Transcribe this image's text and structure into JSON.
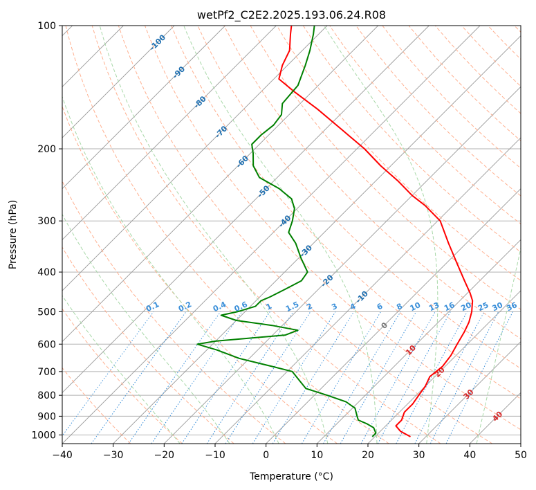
{
  "chart_data": {
    "type": "skew-t",
    "title": "wetPf2_C2E2.2025.193.06.24.R08",
    "xlabel": "Temperature (°C)",
    "ylabel": "Pressure (hPa)",
    "xlim": [
      -40,
      50
    ],
    "ylim": [
      1050,
      100
    ],
    "y_scale": "log",
    "grid": true,
    "x_ticks": [
      "−40",
      "−30",
      "−20",
      "−10",
      "0",
      "10",
      "20",
      "30",
      "40",
      "50"
    ],
    "x_tick_values": [
      -40,
      -30,
      -20,
      -10,
      0,
      10,
      20,
      30,
      40,
      50
    ],
    "y_ticks": [
      "100",
      "200",
      "300",
      "400",
      "500",
      "600",
      "700",
      "800",
      "900",
      "1000"
    ],
    "y_tick_values": [
      100,
      200,
      300,
      400,
      500,
      600,
      700,
      800,
      900,
      1000
    ],
    "colors": {
      "temperature": "#ff0000",
      "dewpoint": "#008000",
      "isotherm": "#999999",
      "dry_adiabat": "#ffb090",
      "moist_adiabat": "#a8d8a8",
      "mixing_ratio": "#3a8fd9",
      "isotherm_label_negative": "#1f6fb0",
      "isotherm_label_positive": "#d62728",
      "isotherm_label_zero": "#777777"
    },
    "isotherm_labels": [
      {
        "text": "-100",
        "value": -100
      },
      {
        "text": "-90",
        "value": -90
      },
      {
        "text": "-80",
        "value": -80
      },
      {
        "text": "-70",
        "value": -70
      },
      {
        "text": "-60",
        "value": -60
      },
      {
        "text": "-50",
        "value": -50
      },
      {
        "text": "-40",
        "value": -40
      },
      {
        "text": "-30",
        "value": -30
      },
      {
        "text": "-20",
        "value": -20
      },
      {
        "text": "-10",
        "value": -10
      },
      {
        "text": "0",
        "value": 0
      },
      {
        "text": "10",
        "value": 10
      },
      {
        "text": "20",
        "value": 20
      },
      {
        "text": "30",
        "value": 30
      },
      {
        "text": "40",
        "value": 40
      }
    ],
    "mixing_ratio_labels": [
      "0.1",
      "0.2",
      "0.4",
      "0.6",
      "1",
      "1.5",
      "2",
      "3",
      "4",
      "6",
      "8",
      "10",
      "13",
      "16",
      "20",
      "25",
      "30",
      "36"
    ],
    "mixing_ratio_values": [
      0.1,
      0.2,
      0.4,
      0.6,
      1,
      1.5,
      2,
      3,
      4,
      6,
      8,
      10,
      13,
      16,
      20,
      25,
      30,
      36
    ],
    "series": [
      {
        "name": "temperature",
        "points": [
          {
            "p": 1010,
            "t": 27.0
          },
          {
            "p": 980,
            "t": 24.0
          },
          {
            "p": 950,
            "t": 22.0
          },
          {
            "p": 920,
            "t": 22.0
          },
          {
            "p": 880,
            "t": 21.0
          },
          {
            "p": 840,
            "t": 21.0
          },
          {
            "p": 800,
            "t": 20.5
          },
          {
            "p": 760,
            "t": 20.0
          },
          {
            "p": 720,
            "t": 19.0
          },
          {
            "p": 680,
            "t": 19.5
          },
          {
            "p": 640,
            "t": 19.0
          },
          {
            "p": 600,
            "t": 18.0
          },
          {
            "p": 560,
            "t": 17.0
          },
          {
            "p": 530,
            "t": 16.0
          },
          {
            "p": 500,
            "t": 14.5
          },
          {
            "p": 470,
            "t": 12.5
          },
          {
            "p": 450,
            "t": 10.5
          },
          {
            "p": 420,
            "t": 7.0
          },
          {
            "p": 380,
            "t": 2.0
          },
          {
            "p": 340,
            "t": -3.5
          },
          {
            "p": 300,
            "t": -9.5
          },
          {
            "p": 275,
            "t": -15.5
          },
          {
            "p": 260,
            "t": -20.0
          },
          {
            "p": 240,
            "t": -25.5
          },
          {
            "p": 220,
            "t": -32.0
          },
          {
            "p": 200,
            "t": -38.5
          },
          {
            "p": 180,
            "t": -46.5
          },
          {
            "p": 160,
            "t": -55.5
          },
          {
            "p": 145,
            "t": -63.5
          },
          {
            "p": 135,
            "t": -69.0
          },
          {
            "p": 125,
            "t": -71.0
          },
          {
            "p": 115,
            "t": -72.5
          },
          {
            "p": 105,
            "t": -75.5
          },
          {
            "p": 100,
            "t": -77.0
          }
        ]
      },
      {
        "name": "dewpoint",
        "points": [
          {
            "p": 1010,
            "t": 19.5
          },
          {
            "p": 990,
            "t": 19.5
          },
          {
            "p": 960,
            "t": 18.0
          },
          {
            "p": 940,
            "t": 16.0
          },
          {
            "p": 920,
            "t": 13.5
          },
          {
            "p": 900,
            "t": 12.5
          },
          {
            "p": 860,
            "t": 10.5
          },
          {
            "p": 830,
            "t": 7.5
          },
          {
            "p": 800,
            "t": 2.5
          },
          {
            "p": 770,
            "t": -3.0
          },
          {
            "p": 740,
            "t": -5.5
          },
          {
            "p": 700,
            "t": -9.0
          },
          {
            "p": 680,
            "t": -14.0
          },
          {
            "p": 650,
            "t": -22.0
          },
          {
            "p": 620,
            "t": -28.0
          },
          {
            "p": 600,
            "t": -33.0
          },
          {
            "p": 590,
            "t": -30.0
          },
          {
            "p": 570,
            "t": -17.5
          },
          {
            "p": 555,
            "t": -16.0
          },
          {
            "p": 540,
            "t": -22.0
          },
          {
            "p": 525,
            "t": -30.0
          },
          {
            "p": 510,
            "t": -34.0
          },
          {
            "p": 500,
            "t": -31.5
          },
          {
            "p": 485,
            "t": -29.0
          },
          {
            "p": 470,
            "t": -29.0
          },
          {
            "p": 460,
            "t": -28.0
          },
          {
            "p": 440,
            "t": -26.5
          },
          {
            "p": 420,
            "t": -25.0
          },
          {
            "p": 400,
            "t": -25.5
          },
          {
            "p": 370,
            "t": -29.5
          },
          {
            "p": 340,
            "t": -33.5
          },
          {
            "p": 320,
            "t": -37.0
          },
          {
            "p": 300,
            "t": -38.5
          },
          {
            "p": 280,
            "t": -40.5
          },
          {
            "p": 265,
            "t": -43.0
          },
          {
            "p": 250,
            "t": -47.5
          },
          {
            "p": 235,
            "t": -53.5
          },
          {
            "p": 220,
            "t": -57.0
          },
          {
            "p": 205,
            "t": -59.5
          },
          {
            "p": 195,
            "t": -61.5
          },
          {
            "p": 185,
            "t": -61.5
          },
          {
            "p": 175,
            "t": -61.0
          },
          {
            "p": 165,
            "t": -61.5
          },
          {
            "p": 155,
            "t": -63.5
          },
          {
            "p": 140,
            "t": -64.0
          },
          {
            "p": 125,
            "t": -66.5
          },
          {
            "p": 115,
            "t": -68.5
          },
          {
            "p": 105,
            "t": -71.0
          },
          {
            "p": 100,
            "t": -72.5
          }
        ]
      }
    ]
  }
}
